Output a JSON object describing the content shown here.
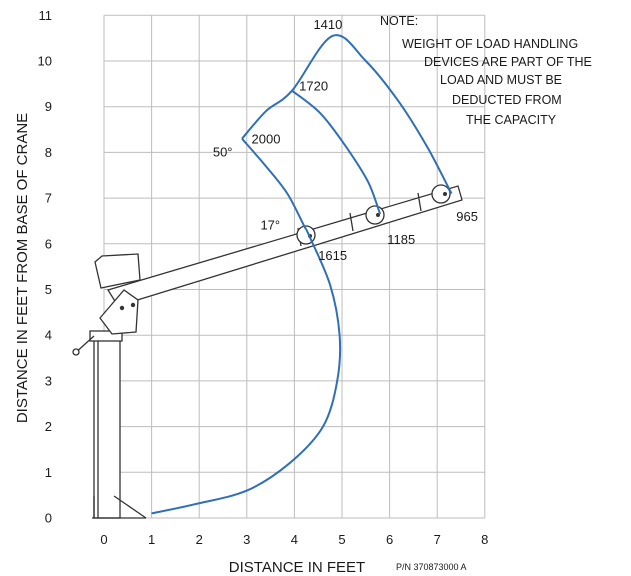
{
  "chart_data": {
    "type": "line",
    "title": "",
    "xlabel": "DISTANCE IN FEET",
    "ylabel": "DISTANCE IN FEET FROM BASE OF CRANE",
    "xlim": [
      0,
      8
    ],
    "ylim": [
      0,
      11
    ],
    "x_ticks": [
      "0",
      "1",
      "2",
      "3",
      "4",
      "5",
      "6",
      "7",
      "8"
    ],
    "y_ticks": [
      "0",
      "1",
      "2",
      "3",
      "4",
      "5",
      "6",
      "7",
      "8",
      "9",
      "10",
      "11"
    ],
    "grid": true,
    "angle_labels": [
      {
        "text": "50°",
        "x": 2.7,
        "y": 8.0
      },
      {
        "text": "17°",
        "x": 3.7,
        "y": 6.4
      }
    ],
    "boom_pivot": {
      "x": 0.5,
      "y": 5.2
    },
    "boom_positions": [
      {
        "id": "retracted",
        "tip": {
          "x": 4.3,
          "y": 6.2
        },
        "load_label": "1615"
      },
      {
        "id": "mid1",
        "tip": {
          "x": 5.8,
          "y": 6.65
        },
        "load_label": "1185"
      },
      {
        "id": "extended",
        "tip": {
          "x": 7.3,
          "y": 7.1
        },
        "load_label": "965"
      }
    ],
    "series": [
      {
        "label": "2000 / 1615",
        "upper_label": "2000",
        "lower_label": "1615",
        "points": [
          [
            2.9,
            8.3
          ],
          [
            3.4,
            7.7
          ],
          [
            3.85,
            7.1
          ],
          [
            4.2,
            6.4
          ],
          [
            4.3,
            6.2
          ],
          [
            4.75,
            5.1
          ],
          [
            4.95,
            4.0
          ],
          [
            4.9,
            3.0
          ],
          [
            4.6,
            2.0
          ],
          [
            3.9,
            1.2
          ],
          [
            3.0,
            0.6
          ],
          [
            1.9,
            0.3
          ],
          [
            1.0,
            0.1
          ]
        ]
      },
      {
        "label": "1720 / 1185",
        "upper_label": "1720",
        "lower_label": "1185",
        "points": [
          [
            3.95,
            9.35
          ],
          [
            4.55,
            8.85
          ],
          [
            5.1,
            8.1
          ],
          [
            5.55,
            7.35
          ],
          [
            5.8,
            6.65
          ]
        ]
      },
      {
        "label": "1410 / 965",
        "upper_label": "1410",
        "lower_label": "965",
        "points": [
          [
            2.9,
            8.3
          ],
          [
            3.4,
            8.9
          ],
          [
            3.95,
            9.35
          ],
          [
            4.8,
            10.55
          ],
          [
            5.5,
            10.0
          ],
          [
            6.2,
            9.1
          ],
          [
            6.8,
            8.1
          ],
          [
            7.3,
            7.1
          ]
        ]
      }
    ]
  },
  "note": {
    "lines": [
      "NOTE:",
      "WEIGHT OF LOAD HANDLING",
      "DEVICES ARE PART OF THE",
      "LOAD AND MUST BE",
      "DEDUCTED FROM",
      "THE CAPACITY"
    ]
  },
  "part_number": "P/N 370873000 A",
  "colors": {
    "curve": "#2f6fb7",
    "grid": "#bdbdbd",
    "ink": "#1a1a1a"
  }
}
